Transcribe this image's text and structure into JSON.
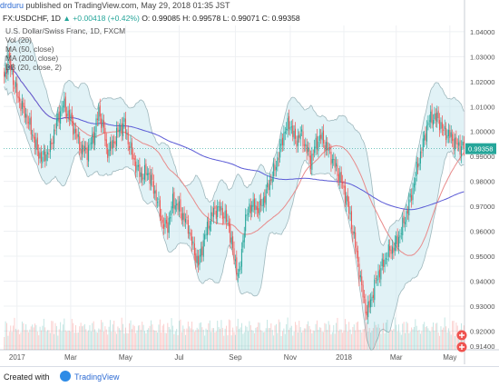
{
  "header": {
    "user": "drduru",
    "published_text": " published on TradingView.com, May 29, 2018 01:35 JST"
  },
  "symbol_bar": {
    "symbol": "FX:USDCHF, 1D",
    "change": "▲ +0.00418 (+0.42%)",
    "open": "O: 0.99085",
    "high": "H: 0.99578",
    "low": "L: 0.99071",
    "close": "C: 0.99358"
  },
  "legend": {
    "title": "U.S. Dollar/Swiss Franc, 1D, FXCM",
    "vol": "Vol (20)",
    "ma50": "MA (50, close)",
    "ma200": "MA (200, close)",
    "bb": "BB (20, close, 2)"
  },
  "footer": {
    "created_with": "Created with",
    "brand": "TradingView"
  },
  "colors": {
    "up": "#26a69a",
    "down": "#ef5350",
    "ma50": "#e88a8a",
    "ma200": "#5b5bd6",
    "bb_fill": "#c8e8ee",
    "bb_line": "#9fb8bd",
    "price_label": "#26a69a"
  },
  "chart_data": {
    "type": "candlestick",
    "title": "U.S. Dollar/Swiss Franc, 1D, FXCM",
    "last_price_label": "0.99358",
    "ylim": [
      0.9125,
      1.0425
    ],
    "y_ticks": [
      "1.04000",
      "1.03000",
      "1.02000",
      "1.01000",
      "1.00000",
      "0.99000",
      "0.98000",
      "0.97000",
      "0.96000",
      "0.95000",
      "0.94000",
      "0.93000",
      "0.92000",
      "0.91400"
    ],
    "x_ticks": [
      "2017",
      "Mar",
      "May",
      "Jul",
      "Sep",
      "Nov",
      "2018",
      "Mar",
      "May"
    ],
    "x_tick_bars": [
      10,
      52,
      95,
      137,
      181,
      224,
      266,
      307,
      349
    ],
    "close_anchor_bars": [
      0,
      3,
      5,
      8,
      12,
      18,
      22,
      26,
      30,
      36,
      40,
      46,
      52,
      56,
      60,
      65,
      70,
      74,
      78,
      80,
      84,
      90,
      94,
      96,
      100,
      104,
      108,
      112,
      116,
      120,
      124,
      128,
      132,
      136,
      140,
      144,
      148,
      152,
      156,
      160,
      164,
      168,
      172,
      176,
      180,
      184,
      188,
      192,
      196,
      200,
      204,
      208,
      212,
      216,
      220,
      224,
      228,
      232,
      236,
      240,
      244,
      248,
      252,
      256,
      260,
      264,
      268,
      272,
      276,
      280,
      284,
      288,
      292,
      296,
      300,
      304,
      308,
      312,
      316,
      320,
      324,
      328,
      332,
      336,
      340,
      344,
      348,
      352,
      356,
      360
    ],
    "close_anchor_values": [
      1.022,
      1.029,
      1.026,
      1.018,
      1.012,
      1.005,
      0.999,
      0.992,
      0.989,
      0.993,
      1.002,
      1.011,
      1.005,
      0.999,
      0.993,
      0.992,
      0.998,
      1.008,
      1.001,
      0.992,
      0.994,
      1.001,
      1.003,
      0.998,
      0.991,
      0.985,
      0.982,
      0.984,
      0.979,
      0.972,
      0.963,
      0.962,
      0.972,
      0.97,
      0.966,
      0.962,
      0.953,
      0.947,
      0.956,
      0.963,
      0.968,
      0.969,
      0.967,
      0.962,
      0.949,
      0.942,
      0.962,
      0.97,
      0.97,
      0.969,
      0.974,
      0.98,
      0.985,
      0.993,
      1.001,
      1.003,
      0.996,
      0.999,
      0.994,
      0.988,
      0.995,
      0.998,
      0.994,
      0.99,
      0.985,
      0.98,
      0.973,
      0.963,
      0.951,
      0.937,
      0.927,
      0.934,
      0.942,
      0.946,
      0.951,
      0.953,
      0.956,
      0.962,
      0.969,
      0.977,
      0.987,
      0.995,
      1.004,
      1.006,
      1.005,
      1.0,
      0.999,
      0.996,
      0.994,
      0.994
    ]
  }
}
